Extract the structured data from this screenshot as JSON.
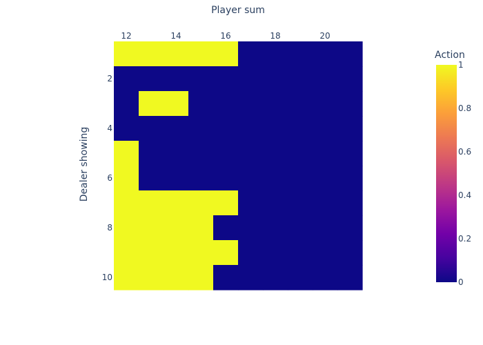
{
  "chart_data": {
    "type": "heatmap",
    "x": [
      12,
      13,
      14,
      15,
      16,
      17,
      18,
      19,
      20,
      21
    ],
    "y": [
      1,
      2,
      3,
      4,
      5,
      6,
      7,
      8,
      9,
      10
    ],
    "z": [
      [
        1,
        1,
        1,
        1,
        1,
        0,
        0,
        0,
        0,
        0
      ],
      [
        0,
        0,
        0,
        0,
        0,
        0,
        0,
        0,
        0,
        0
      ],
      [
        0,
        1,
        1,
        0,
        0,
        0,
        0,
        0,
        0,
        0
      ],
      [
        0,
        0,
        0,
        0,
        0,
        0,
        0,
        0,
        0,
        0
      ],
      [
        1,
        0,
        0,
        0,
        0,
        0,
        0,
        0,
        0,
        0
      ],
      [
        1,
        0,
        0,
        0,
        0,
        0,
        0,
        0,
        0,
        0
      ],
      [
        1,
        1,
        1,
        1,
        1,
        0,
        0,
        0,
        0,
        0
      ],
      [
        1,
        1,
        1,
        1,
        0,
        0,
        0,
        0,
        0,
        0
      ],
      [
        1,
        1,
        1,
        1,
        1,
        0,
        0,
        0,
        0,
        0
      ],
      [
        1,
        1,
        1,
        1,
        0,
        0,
        0,
        0,
        0,
        0
      ]
    ],
    "xlabel": "Player sum",
    "ylabel": "Dealer showing",
    "x_ticks": [
      "12",
      "14",
      "16",
      "18",
      "20"
    ],
    "x_tick_values": [
      12,
      14,
      16,
      18,
      20
    ],
    "y_ticks": [
      "2",
      "4",
      "6",
      "8",
      "10"
    ],
    "y_tick_values": [
      2,
      4,
      6,
      8,
      10
    ],
    "x_axis_side": "top",
    "y_axis_reversed": true,
    "zlim": [
      0,
      1
    ],
    "colorscale": "plasma",
    "colorbar": {
      "title": "Action",
      "ticks": [
        "0",
        "0.2",
        "0.4",
        "0.6",
        "0.8",
        "1"
      ],
      "tick_values": [
        0,
        0.2,
        0.4,
        0.6,
        0.8,
        1
      ],
      "stops": [
        "#0d0887",
        "#46039f",
        "#7201a8",
        "#9c179e",
        "#bd3786",
        "#d8576b",
        "#ed7953",
        "#fb9f3a",
        "#fdca26",
        "#f0f921"
      ]
    },
    "grid": false
  }
}
